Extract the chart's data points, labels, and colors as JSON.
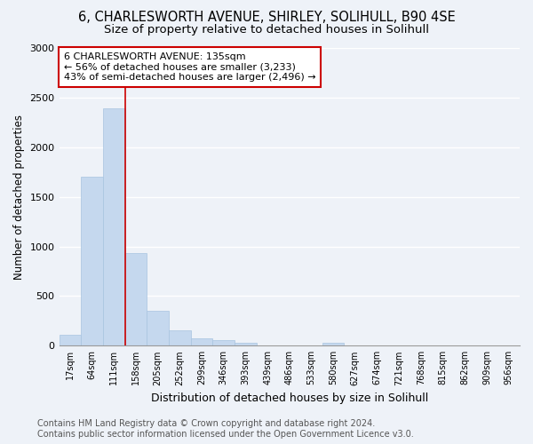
{
  "title1": "6, CHARLESWORTH AVENUE, SHIRLEY, SOLIHULL, B90 4SE",
  "title2": "Size of property relative to detached houses in Solihull",
  "xlabel": "Distribution of detached houses by size in Solihull",
  "ylabel": "Number of detached properties",
  "categories": [
    "17sqm",
    "64sqm",
    "111sqm",
    "158sqm",
    "205sqm",
    "252sqm",
    "299sqm",
    "346sqm",
    "393sqm",
    "439sqm",
    "486sqm",
    "533sqm",
    "580sqm",
    "627sqm",
    "674sqm",
    "721sqm",
    "768sqm",
    "815sqm",
    "862sqm",
    "909sqm",
    "956sqm"
  ],
  "values": [
    110,
    1700,
    2390,
    930,
    355,
    155,
    75,
    55,
    30,
    5,
    5,
    0,
    30,
    0,
    0,
    0,
    0,
    0,
    0,
    0,
    0
  ],
  "bar_color": "#c5d8ee",
  "bar_edge_color": "#a8c4e0",
  "highlight_color": "#cc0000",
  "vline_x": 2,
  "annotation_line1": "6 CHARLESWORTH AVENUE: 135sqm",
  "annotation_line2": "← 56% of detached houses are smaller (3,233)",
  "annotation_line3": "43% of semi-detached houses are larger (2,496) →",
  "annotation_box_color": "#ffffff",
  "annotation_border_color": "#cc0000",
  "ylim": [
    0,
    3000
  ],
  "yticks": [
    0,
    500,
    1000,
    1500,
    2000,
    2500,
    3000
  ],
  "footer_line1": "Contains HM Land Registry data © Crown copyright and database right 2024.",
  "footer_line2": "Contains public sector information licensed under the Open Government Licence v3.0.",
  "bg_color": "#eef2f8",
  "grid_color": "#ffffff",
  "title1_fontsize": 10.5,
  "title2_fontsize": 9.5,
  "xlabel_fontsize": 9,
  "ylabel_fontsize": 8.5,
  "tick_fontsize": 8,
  "xtick_fontsize": 7,
  "footer_fontsize": 7,
  "annot_fontsize": 8
}
